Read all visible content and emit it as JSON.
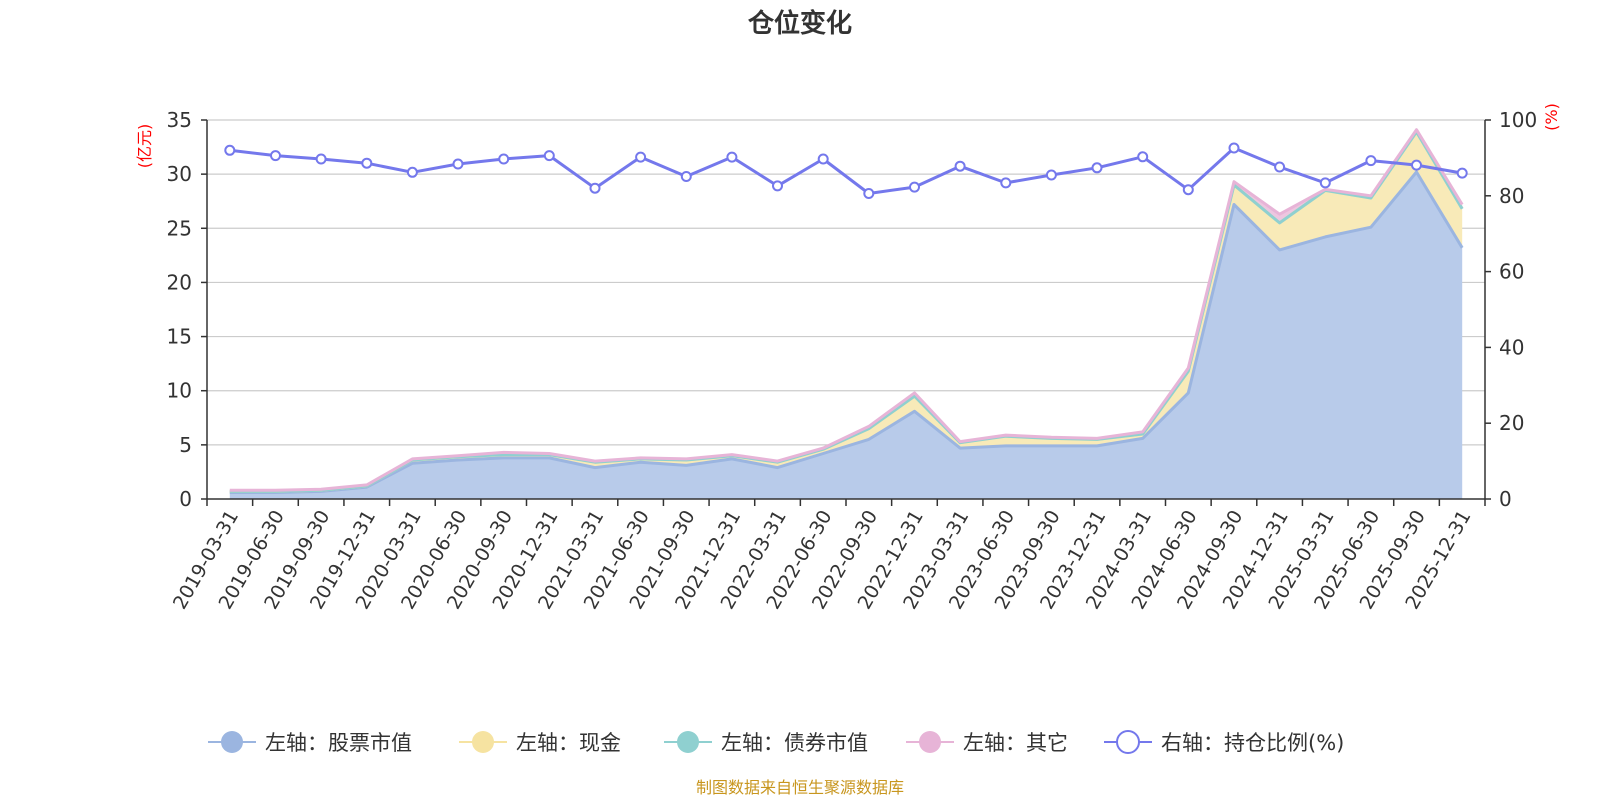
{
  "chart_data": {
    "type": "area",
    "title": "仓位变化",
    "left_axis_unit": "(亿元)",
    "right_axis_unit": "(%)",
    "x": [
      "2019-03-31",
      "2019-06-30",
      "2019-09-30",
      "2019-12-31",
      "2020-03-31",
      "2020-06-30",
      "2020-09-30",
      "2020-12-31",
      "2021-03-31",
      "2021-06-30",
      "2021-09-30",
      "2021-12-31",
      "2022-03-31",
      "2022-06-30",
      "2022-09-30",
      "2022-12-31",
      "2023-03-31",
      "2023-06-30",
      "2023-09-30",
      "2023-12-31",
      "2024-03-31",
      "2024-06-30",
      "2024-09-30",
      "2024-12-31",
      "2025-03-31",
      "2025-06-30",
      "2025-09-30",
      "2025-12-31"
    ],
    "left_ylim": [
      0,
      35
    ],
    "left_ticks": [
      0,
      5,
      10,
      15,
      20,
      25,
      30,
      35
    ],
    "right_ylim": [
      0,
      100
    ],
    "right_ticks": [
      0,
      20,
      40,
      60,
      80,
      100
    ],
    "grid": true,
    "legend_position": "bottom",
    "series": [
      {
        "name": "左轴：股票市值",
        "axis": "left",
        "stack": true,
        "color": "#9bb5e0",
        "fill": "#b8cbea",
        "values": [
          0.6,
          0.6,
          0.7,
          1.1,
          3.3,
          3.6,
          3.8,
          3.8,
          2.9,
          3.4,
          3.1,
          3.7,
          2.9,
          4.2,
          5.5,
          8.1,
          4.7,
          4.9,
          4.9,
          4.9,
          5.6,
          9.8,
          27.2,
          23.0,
          24.2,
          25.1,
          30.2,
          23.2
        ]
      },
      {
        "name": "左轴：现金",
        "axis": "left",
        "stack": true,
        "color": "#f6e3a1",
        "fill": "#f8eab8",
        "values": [
          0.1,
          0.1,
          0.1,
          0.1,
          0.3,
          0.3,
          0.3,
          0.3,
          0.5,
          0.3,
          0.5,
          0.3,
          0.5,
          0.4,
          1.0,
          1.4,
          0.5,
          0.9,
          0.7,
          0.6,
          0.4,
          2.0,
          1.8,
          2.5,
          4.3,
          2.7,
          3.7,
          3.6
        ]
      },
      {
        "name": "左轴：债券市值",
        "axis": "left",
        "stack": true,
        "color": "#8fd0d0",
        "fill": "#a8dcdc",
        "values": [
          0,
          0,
          0,
          0,
          0,
          0,
          0,
          0,
          0,
          0,
          0,
          0,
          0,
          0,
          0,
          0,
          0,
          0,
          0,
          0,
          0,
          0,
          0,
          0,
          0,
          0,
          0,
          0
        ]
      },
      {
        "name": "左轴：其它",
        "axis": "left",
        "stack": true,
        "color": "#e7b4d7",
        "fill": "#edc6e0",
        "values": [
          0.1,
          0.1,
          0.1,
          0.1,
          0.1,
          0.1,
          0.2,
          0.1,
          0.1,
          0.1,
          0.1,
          0.1,
          0.1,
          0.1,
          0.2,
          0.3,
          0.1,
          0.1,
          0.1,
          0.1,
          0.2,
          0.3,
          0.3,
          0.8,
          0.1,
          0.2,
          0.2,
          0.4
        ]
      },
      {
        "name": "右轴：持仓比例(%)",
        "axis": "right",
        "stack": false,
        "color": "#7478ec",
        "values": [
          92.0,
          90.6,
          89.7,
          88.6,
          86.2,
          88.4,
          89.7,
          90.6,
          82.0,
          90.2,
          85.1,
          90.2,
          82.6,
          89.7,
          80.6,
          82.3,
          87.8,
          83.4,
          85.5,
          87.4,
          90.3,
          81.6,
          92.6,
          87.6,
          83.4,
          89.3,
          88.1,
          86.0
        ]
      }
    ]
  },
  "footer": {
    "source": "制图数据来自恒生聚源数据库"
  }
}
